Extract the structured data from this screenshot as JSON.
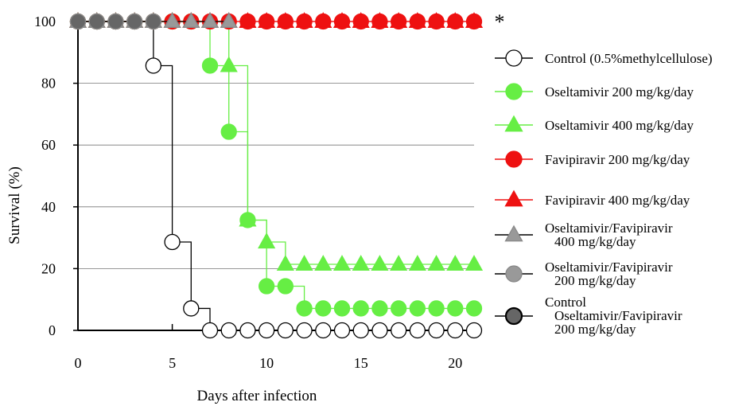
{
  "chart_data": {
    "type": "line",
    "subtype": "kaplan-meier survival",
    "title": "",
    "xlabel": "Days after infection",
    "ylabel": "Survival (%)",
    "xlim": [
      0,
      21
    ],
    "ylim": [
      0,
      100
    ],
    "xticks": [
      "0",
      "5",
      "10",
      "15",
      "20"
    ],
    "yticks": [
      "0",
      "20",
      "40",
      "60",
      "80",
      "100"
    ],
    "grid": "horizontal",
    "legend_position": "right",
    "annotation": "*",
    "series": [
      {
        "name": "Control  (0.5%methylcellulose)",
        "marker": "circle",
        "fill": "#ffffff",
        "line": "#000000",
        "x": [
          0,
          1,
          2,
          3,
          4,
          5,
          6,
          7,
          8,
          9,
          10,
          11,
          12,
          13,
          14,
          15,
          16,
          17,
          18,
          19,
          20,
          21
        ],
        "y": [
          100,
          100,
          100,
          100,
          85.7,
          28.6,
          7.1,
          0,
          0,
          0,
          0,
          0,
          0,
          0,
          0,
          0,
          0,
          0,
          0,
          0,
          0,
          0
        ]
      },
      {
        "name": "Oseltamivir  200 mg/kg/day",
        "marker": "circle",
        "fill": "#66ee44",
        "line": "#66ee44",
        "x": [
          0,
          1,
          2,
          3,
          4,
          5,
          6,
          7,
          8,
          9,
          10,
          11,
          12,
          13,
          14,
          15,
          16,
          17,
          18,
          19,
          20,
          21
        ],
        "y": [
          100,
          100,
          100,
          100,
          100,
          100,
          100,
          85.7,
          64.3,
          35.7,
          14.3,
          14.3,
          7.1,
          7.1,
          7.1,
          7.1,
          7.1,
          7.1,
          7.1,
          7.1,
          7.1,
          7.1
        ]
      },
      {
        "name": "Oseltamivir  400 mg/kg/day",
        "marker": "triangle",
        "fill": "#66ee44",
        "line": "#66ee44",
        "x": [
          0,
          1,
          2,
          3,
          4,
          5,
          6,
          7,
          8,
          9,
          10,
          11,
          12,
          13,
          14,
          15,
          16,
          17,
          18,
          19,
          20,
          21
        ],
        "y": [
          100,
          100,
          100,
          100,
          100,
          100,
          100,
          100,
          85.7,
          35.7,
          28.6,
          21.4,
          21.4,
          21.4,
          21.4,
          21.4,
          21.4,
          21.4,
          21.4,
          21.4,
          21.4,
          21.4
        ]
      },
      {
        "name": "Favipiravir  200 mg/kg/day",
        "marker": "circle",
        "fill": "#ee1111",
        "line": "#ee1111",
        "x": [
          0,
          1,
          2,
          3,
          4,
          5,
          6,
          7,
          8,
          9,
          10,
          11,
          12,
          13,
          14,
          15,
          16,
          17,
          18,
          19,
          20,
          21
        ],
        "y": [
          100,
          100,
          100,
          100,
          100,
          100,
          100,
          100,
          100,
          100,
          100,
          100,
          100,
          100,
          100,
          100,
          100,
          100,
          100,
          100,
          100,
          100
        ]
      },
      {
        "name": "Favipiravir  400 mg/kg/day",
        "marker": "triangle",
        "fill": "#ee1111",
        "line": "#ee1111",
        "x": [
          0,
          1,
          2,
          3,
          4,
          5,
          6,
          7,
          8,
          9,
          10,
          11,
          12,
          13,
          14,
          15,
          16,
          17,
          18,
          19,
          20,
          21
        ],
        "y": [
          100,
          100,
          100,
          100,
          100,
          100,
          100,
          100,
          100,
          100,
          100,
          100,
          100,
          100,
          100,
          100,
          100,
          100,
          100,
          100,
          100,
          100
        ]
      },
      {
        "name": "Oseltamivir/Favipiravir\n400 mg/kg/day",
        "marker": "triangle",
        "fill": "#999999",
        "line": "#000000",
        "x": [
          0,
          1,
          2,
          3,
          4,
          5,
          6,
          7,
          8
        ],
        "y": [
          100,
          100,
          100,
          100,
          100,
          100,
          100,
          100,
          100
        ]
      },
      {
        "name": "Oseltamivir/Favipiravir\n200 mg/kg/day",
        "marker": "circle",
        "fill": "#999999",
        "line": "#000000",
        "x": [
          0,
          1,
          2,
          3,
          4
        ],
        "y": [
          100,
          100,
          100,
          100,
          100
        ]
      },
      {
        "name": "Control\nOseltamivir/Favipiravir\n200 mg/kg/day",
        "marker": "circle",
        "fill": "#666666",
        "line": "#000000",
        "x": [
          0,
          1,
          2,
          3,
          4
        ],
        "y": [
          100,
          100,
          100,
          100,
          100
        ]
      }
    ]
  }
}
